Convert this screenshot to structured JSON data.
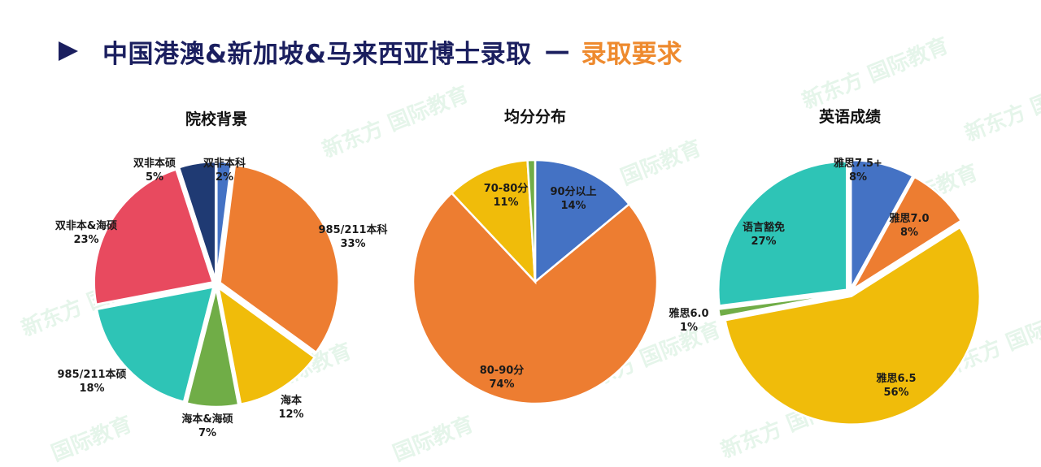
{
  "header": {
    "title_main": "中国港澳&新加坡&马来西亚博士录取",
    "title_dash": "—",
    "title_accent": "录取要求",
    "arrow_icon": "right-triangle-icon",
    "colors": {
      "primary": "#1b1f5f",
      "accent": "#ee8a2e"
    }
  },
  "watermark": {
    "brand": "新东方",
    "text": "国际教育"
  },
  "chart_data": [
    {
      "type": "pie",
      "title": "院校背景",
      "slices": [
        {
          "label": "双非本科",
          "value": 2,
          "pct": "2%",
          "color": "#4472c4"
        },
        {
          "label": "985/211本科",
          "value": 33,
          "pct": "33%",
          "color": "#ed7d31"
        },
        {
          "label": "海本",
          "value": 12,
          "pct": "12%",
          "color": "#f0bc0a"
        },
        {
          "label": "海本&海硕",
          "value": 7,
          "pct": "7%",
          "color": "#70ad47"
        },
        {
          "label": "985/211本硕",
          "value": 18,
          "pct": "18%",
          "color": "#2ec4b6"
        },
        {
          "label": "双非本&海硕",
          "value": 23,
          "pct": "23%",
          "color": "#e84a5f"
        },
        {
          "label": "双非本硕",
          "value": 5,
          "pct": "5%",
          "color": "#1f3a73"
        }
      ]
    },
    {
      "type": "pie",
      "title": "均分分布",
      "slices": [
        {
          "label": "90分以上",
          "value": 14,
          "pct": "14%",
          "color": "#4472c4"
        },
        {
          "label": "80-90分",
          "value": 74,
          "pct": "74%",
          "color": "#ed7d31"
        },
        {
          "label": "70-80分",
          "value": 11,
          "pct": "11%",
          "color": "#f0bc0a"
        },
        {
          "label": "",
          "value": 1,
          "pct": "",
          "color": "#70ad47"
        }
      ]
    },
    {
      "type": "pie",
      "title": "英语成绩",
      "slices": [
        {
          "label": "雅思7.5+",
          "value": 8,
          "pct": "8%",
          "color": "#4472c4"
        },
        {
          "label": "雅思7.0",
          "value": 8,
          "pct": "8%",
          "color": "#ed7d31"
        },
        {
          "label": "雅思6.5",
          "value": 56,
          "pct": "56%",
          "color": "#f0bc0a"
        },
        {
          "label": "雅思6.0",
          "value": 1,
          "pct": "1%",
          "color": "#70ad47"
        },
        {
          "label": "语言豁免",
          "value": 27,
          "pct": "27%",
          "color": "#2ec4b6"
        }
      ]
    }
  ]
}
